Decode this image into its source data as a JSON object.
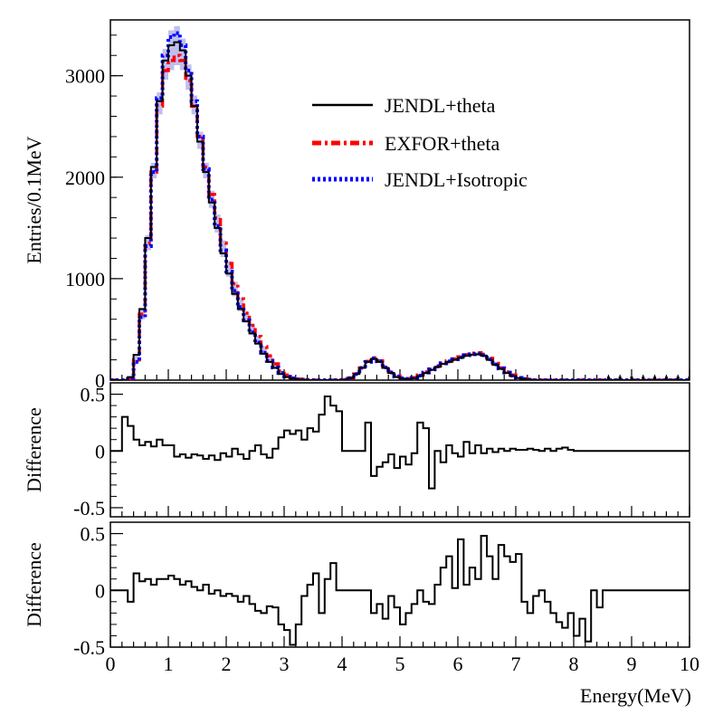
{
  "chart_data": {
    "type": "line",
    "xlabel": "Energy(MeV)",
    "xlim": [
      0,
      10
    ],
    "x_ticks": [
      "0",
      "1",
      "2",
      "3",
      "4",
      "5",
      "6",
      "7",
      "8",
      "9",
      "10"
    ],
    "panels": [
      {
        "id": "spectrum",
        "ylabel": "Entries/0.1MeV",
        "ylim": [
          0,
          3550
        ],
        "y_ticks": [
          "0",
          "1000",
          "2000",
          "3000"
        ],
        "legend": {
          "placement": "top-right"
        },
        "x": [
          0.0,
          0.1,
          0.2,
          0.3,
          0.4,
          0.5,
          0.6,
          0.7,
          0.8,
          0.9,
          1.0,
          1.1,
          1.2,
          1.3,
          1.4,
          1.5,
          1.6,
          1.7,
          1.8,
          1.9,
          2.0,
          2.1,
          2.2,
          2.3,
          2.4,
          2.5,
          2.6,
          2.7,
          2.8,
          2.9,
          3.0,
          3.1,
          3.2,
          3.3,
          3.4,
          3.5,
          3.6,
          3.7,
          3.8,
          3.9,
          4.0,
          4.1,
          4.2,
          4.3,
          4.4,
          4.5,
          4.6,
          4.7,
          4.8,
          4.9,
          5.0,
          5.1,
          5.2,
          5.3,
          5.4,
          5.5,
          5.6,
          5.7,
          5.8,
          5.9,
          6.0,
          6.1,
          6.2,
          6.3,
          6.4,
          6.5,
          6.6,
          6.7,
          6.8,
          6.9,
          7.0,
          7.1,
          7.2,
          7.3,
          7.4,
          7.5,
          7.6,
          7.7,
          7.8,
          7.9,
          8.0,
          8.1,
          8.2,
          8.3,
          8.4,
          8.5,
          8.6,
          8.7,
          8.8,
          8.9,
          9.0,
          9.1,
          9.2,
          9.3,
          9.4,
          9.5,
          9.6,
          9.7,
          9.8,
          9.9
        ],
        "series": [
          {
            "name": "JENDL+theta",
            "color": "#000000",
            "style": "solid",
            "values": [
              0,
              0,
              0,
              30,
              250,
              700,
              1400,
              2100,
              2750,
              3150,
              3300,
              3330,
              3250,
              3000,
              2700,
              2350,
              2050,
              1750,
              1500,
              1250,
              1050,
              850,
              700,
              580,
              460,
              360,
              260,
              180,
              120,
              60,
              30,
              15,
              5,
              5,
              0,
              0,
              0,
              0,
              0,
              0,
              5,
              20,
              60,
              120,
              180,
              210,
              180,
              120,
              70,
              30,
              15,
              10,
              20,
              40,
              70,
              100,
              130,
              160,
              180,
              200,
              220,
              240,
              250,
              255,
              240,
              200,
              150,
              110,
              70,
              40,
              20,
              10,
              5,
              0,
              0,
              0,
              0,
              0,
              0,
              0,
              0,
              0,
              0,
              0,
              0,
              0,
              0,
              0,
              0,
              0,
              0,
              0,
              0,
              0,
              0,
              0,
              0,
              0,
              0,
              0
            ]
          },
          {
            "name": "EXFOR+theta",
            "color": "#ff0000",
            "style": "dash-dot",
            "values": [
              0,
              0,
              0,
              10,
              200,
              650,
              1350,
              2050,
              2700,
              3050,
              3150,
              3200,
              3150,
              2950,
              2700,
              2400,
              2100,
              1830,
              1600,
              1350,
              1150,
              950,
              800,
              660,
              540,
              430,
              330,
              240,
              160,
              90,
              50,
              25,
              10,
              5,
              0,
              0,
              0,
              0,
              0,
              0,
              5,
              20,
              60,
              120,
              185,
              220,
              190,
              130,
              80,
              40,
              20,
              15,
              25,
              50,
              80,
              110,
              140,
              170,
              190,
              210,
              230,
              250,
              265,
              270,
              255,
              215,
              165,
              120,
              80,
              50,
              25,
              12,
              5,
              0,
              0,
              0,
              0,
              0,
              0,
              0,
              0,
              0,
              0,
              0,
              0,
              0,
              0,
              0,
              0,
              0,
              0,
              0,
              0,
              0,
              0,
              0,
              0,
              0,
              0,
              0
            ]
          },
          {
            "name": "JENDL+Isotropic",
            "color": "#0000ff",
            "style": "dotted",
            "values": [
              0,
              0,
              0,
              10,
              180,
              620,
              1320,
              2050,
              2780,
              3200,
              3380,
              3420,
              3300,
              3050,
              2750,
              2400,
              2080,
              1780,
              1520,
              1280,
              1070,
              880,
              720,
              590,
              470,
              370,
              270,
              190,
              125,
              70,
              35,
              18,
              8,
              5,
              0,
              0,
              0,
              0,
              0,
              0,
              5,
              20,
              60,
              120,
              180,
              215,
              185,
              125,
              75,
              35,
              18,
              12,
              22,
              45,
              75,
              105,
              135,
              165,
              185,
              205,
              225,
              245,
              255,
              260,
              245,
              205,
              155,
              115,
              75,
              45,
              22,
              11,
              5,
              0,
              0,
              0,
              0,
              0,
              0,
              0,
              0,
              0,
              0,
              0,
              0,
              0,
              0,
              0,
              0,
              0,
              0,
              0,
              0,
              0,
              0,
              0,
              0,
              0,
              0,
              0
            ]
          }
        ]
      },
      {
        "id": "difference-1",
        "ylabel": "Difference",
        "ylim": [
          -0.58,
          0.6
        ],
        "y_ticks": [
          "-0.5",
          "0",
          "0.5"
        ],
        "x": [
          0.0,
          0.1,
          0.2,
          0.3,
          0.4,
          0.5,
          0.6,
          0.7,
          0.8,
          0.9,
          1.0,
          1.1,
          1.2,
          1.3,
          1.4,
          1.5,
          1.6,
          1.7,
          1.8,
          1.9,
          2.0,
          2.1,
          2.2,
          2.3,
          2.4,
          2.5,
          2.6,
          2.7,
          2.8,
          2.9,
          3.0,
          3.1,
          3.2,
          3.3,
          3.4,
          3.5,
          3.6,
          3.7,
          3.8,
          3.9,
          4.0,
          4.1,
          4.2,
          4.3,
          4.4,
          4.5,
          4.6,
          4.7,
          4.8,
          4.9,
          5.0,
          5.1,
          5.2,
          5.3,
          5.4,
          5.5,
          5.6,
          5.7,
          5.8,
          5.9,
          6.0,
          6.1,
          6.2,
          6.3,
          6.4,
          6.5,
          6.6,
          6.7,
          6.8,
          6.9,
          7.0,
          7.1,
          7.2,
          7.3,
          7.4,
          7.5,
          7.6,
          7.7,
          7.8,
          7.9,
          8.0,
          8.1,
          8.2,
          8.3,
          8.4,
          8.5,
          8.6,
          8.7,
          8.8,
          8.9,
          9.0,
          9.1,
          9.2,
          9.3,
          9.4,
          9.5,
          9.6,
          9.7,
          9.8,
          9.9
        ],
        "values": [
          0,
          0,
          0.3,
          0.22,
          0.1,
          0.05,
          0.08,
          0.04,
          0.1,
          0.05,
          0.05,
          -0.05,
          -0.03,
          -0.06,
          -0.03,
          -0.04,
          -0.07,
          -0.04,
          -0.08,
          -0.02,
          -0.05,
          0.02,
          -0.03,
          -0.07,
          0,
          0.05,
          -0.03,
          -0.06,
          0.02,
          0.12,
          0.18,
          0.15,
          0.18,
          0.1,
          0.2,
          0.17,
          0.32,
          0.48,
          0.4,
          0.35,
          0,
          0,
          0,
          0,
          0.25,
          -0.22,
          -0.14,
          -0.1,
          -0.03,
          -0.15,
          -0.05,
          -0.12,
          -0.02,
          0.25,
          0.2,
          -0.33,
          0,
          -0.1,
          0.05,
          -0.02,
          -0.05,
          0.08,
          -0.02,
          0.05,
          -0.02,
          0.02,
          -0.01,
          0.02,
          0,
          0.02,
          0.01,
          0.01,
          0.02,
          0.01,
          0,
          0.02,
          0,
          0.02,
          0.03,
          0.01,
          0,
          0,
          0,
          0,
          0,
          0,
          0,
          0,
          0,
          0,
          0,
          0,
          0,
          0,
          0,
          0,
          0,
          0,
          0,
          0
        ]
      },
      {
        "id": "difference-2",
        "ylabel": "Difference",
        "ylim": [
          -0.5,
          0.6
        ],
        "y_ticks": [
          "-0.5",
          "0",
          "0.5"
        ],
        "x": [
          0.0,
          0.1,
          0.2,
          0.3,
          0.4,
          0.5,
          0.6,
          0.7,
          0.8,
          0.9,
          1.0,
          1.1,
          1.2,
          1.3,
          1.4,
          1.5,
          1.6,
          1.7,
          1.8,
          1.9,
          2.0,
          2.1,
          2.2,
          2.3,
          2.4,
          2.5,
          2.6,
          2.7,
          2.8,
          2.9,
          3.0,
          3.1,
          3.2,
          3.3,
          3.4,
          3.5,
          3.6,
          3.7,
          3.8,
          3.9,
          4.0,
          4.1,
          4.2,
          4.3,
          4.4,
          4.5,
          4.6,
          4.7,
          4.8,
          4.9,
          5.0,
          5.1,
          5.2,
          5.3,
          5.4,
          5.5,
          5.6,
          5.7,
          5.8,
          5.9,
          6.0,
          6.1,
          6.2,
          6.3,
          6.4,
          6.5,
          6.6,
          6.7,
          6.8,
          6.9,
          7.0,
          7.1,
          7.2,
          7.3,
          7.4,
          7.5,
          7.6,
          7.7,
          7.8,
          7.9,
          8.0,
          8.1,
          8.2,
          8.3,
          8.4,
          8.5,
          8.6,
          8.7,
          8.8,
          8.9,
          9.0,
          9.1,
          9.2,
          9.3,
          9.4,
          9.5,
          9.6,
          9.7,
          9.8,
          9.9
        ],
        "values": [
          0,
          0,
          0,
          -0.1,
          0.15,
          0.08,
          0.1,
          0.05,
          0.1,
          0.1,
          0.13,
          0.1,
          0.05,
          0.08,
          0.03,
          0,
          0.05,
          -0.03,
          0,
          -0.05,
          -0.03,
          -0.05,
          -0.1,
          -0.05,
          -0.12,
          -0.18,
          -0.2,
          -0.14,
          -0.15,
          -0.3,
          -0.35,
          -0.48,
          -0.3,
          -0.05,
          0.05,
          0.15,
          -0.2,
          0.1,
          0.24,
          0,
          0,
          0,
          0,
          0,
          0,
          -0.2,
          -0.12,
          -0.25,
          -0.05,
          -0.15,
          -0.3,
          -0.2,
          -0.12,
          0,
          -0.1,
          -0.12,
          0.05,
          0.2,
          0.3,
          0.02,
          0.45,
          0.05,
          0.2,
          0.1,
          0.48,
          0.3,
          0.1,
          0.4,
          0.3,
          0.25,
          0.32,
          -0.1,
          -0.2,
          -0.05,
          0,
          -0.1,
          -0.2,
          -0.28,
          -0.33,
          -0.2,
          -0.4,
          -0.25,
          -0.45,
          0,
          -0.15,
          0,
          0,
          0,
          0,
          0,
          0,
          0,
          0,
          0,
          0,
          0,
          0,
          0,
          0,
          0
        ]
      }
    ]
  }
}
